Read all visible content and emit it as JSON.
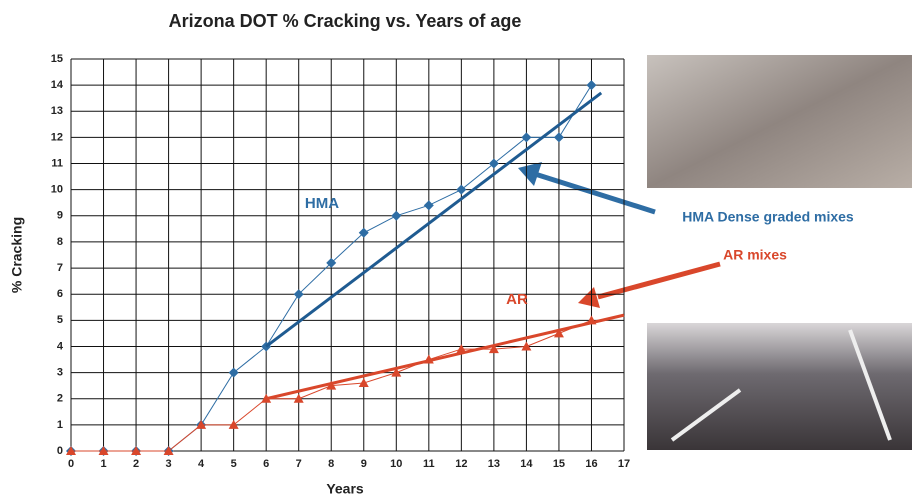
{
  "chart_data": {
    "type": "line",
    "title": "Arizona DOT % Cracking vs. Years of age",
    "x_label": "Years",
    "y_label": "% Cracking",
    "x": [
      0,
      1,
      2,
      3,
      4,
      5,
      6,
      7,
      8,
      9,
      10,
      11,
      12,
      13,
      14,
      15,
      16
    ],
    "series": [
      {
        "name": "HMA",
        "color": "#2e6da4",
        "marker": "diamond",
        "values": [
          0,
          0,
          0,
          0,
          1,
          3,
          4,
          6,
          7.2,
          8.35,
          9,
          9.4,
          10,
          11,
          12,
          12,
          14
        ]
      },
      {
        "name": "AR",
        "color": "#d9472b",
        "marker": "triangle",
        "values": [
          0,
          0,
          0,
          0,
          1,
          1,
          2,
          2,
          2.5,
          2.6,
          3,
          3.5,
          3.9,
          3.9,
          4,
          4.5,
          5
        ]
      }
    ],
    "trendlines": [
      {
        "color": "#1f5b91",
        "x": [
          6,
          16.3
        ],
        "values": [
          4,
          13.7
        ]
      },
      {
        "color": "#d9472b",
        "x": [
          6,
          17
        ],
        "values": [
          2,
          5.2
        ]
      }
    ],
    "annotations": [
      {
        "text": "HMA Dense graded mixes",
        "color": "#2e6da4"
      },
      {
        "text": "AR mixes",
        "color": "#d9472b"
      }
    ],
    "xlim": [
      0,
      17
    ],
    "ylim": [
      0,
      15
    ],
    "xticks": [
      0,
      1,
      2,
      3,
      4,
      5,
      6,
      7,
      8,
      9,
      10,
      11,
      12,
      13,
      14,
      15,
      16,
      17
    ],
    "yticks": [
      0,
      1,
      2,
      3,
      4,
      5,
      6,
      7,
      8,
      9,
      10,
      11,
      12,
      13,
      14,
      15
    ],
    "grid": true
  }
}
